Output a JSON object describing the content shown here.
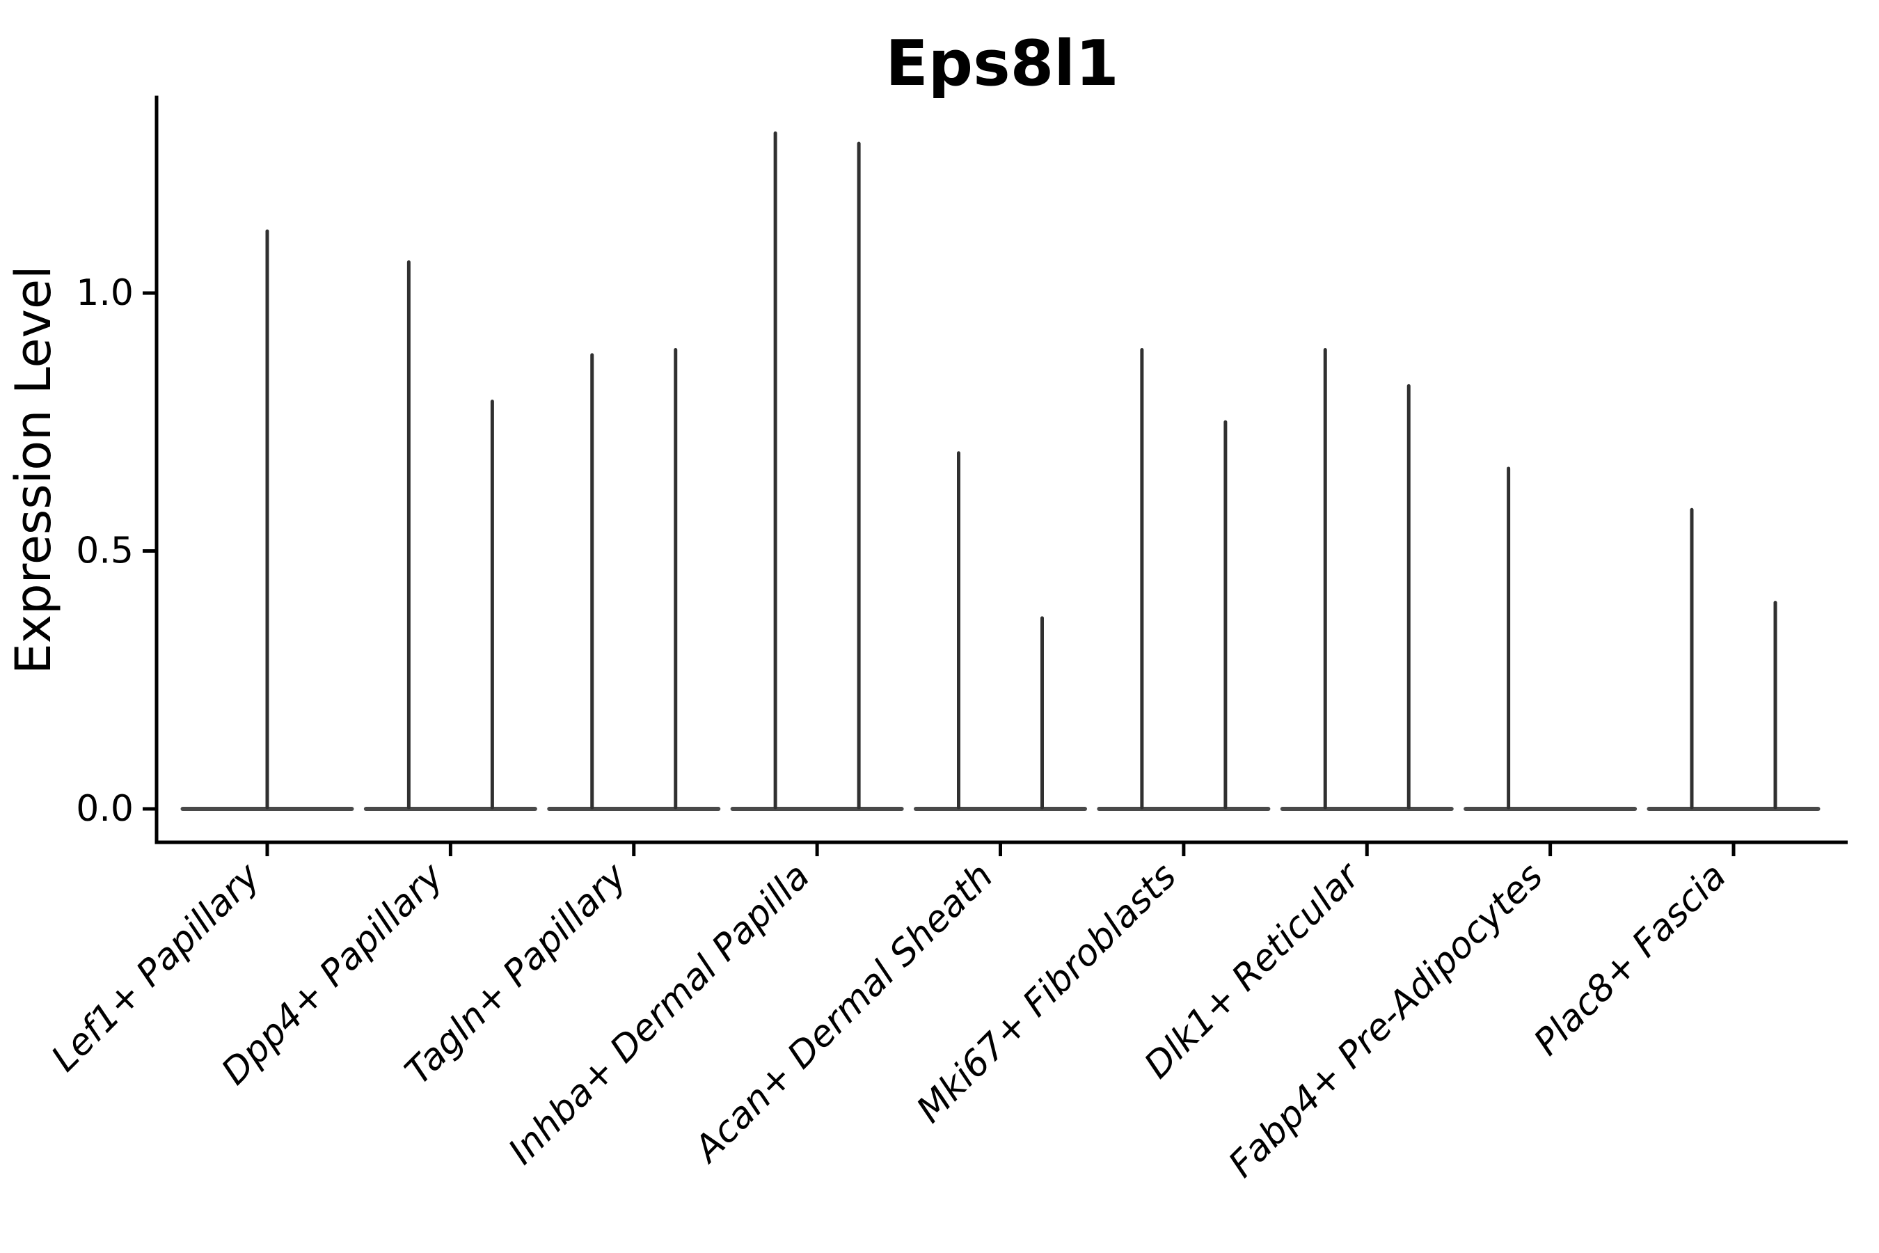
{
  "title": "Eps8l1",
  "axes": {
    "y_label": "Expression Level",
    "y_tick_labels": [
      "1.0",
      "0.5",
      "0.0"
    ],
    "x_tick_labels": [
      "Lef1+ Papillary",
      "Dpp4+ Papillary",
      "Tagln+ Papillary",
      "Inhba+ Dermal Papilla",
      "Acan+ Dermal Sheath",
      "Mki67+ Fibroblasts",
      "Dlk1+ Reticular",
      "Fabp4+ Pre-Adipocytes",
      "Plac8+ Fascia"
    ]
  },
  "colors": {
    "violin_stroke": "#303030",
    "baseline_stroke": "#3a3a3a",
    "axis": "#000000",
    "text": "#000000",
    "background": "#ffffff"
  },
  "chart_data": {
    "type": "violin",
    "title": "Eps8l1",
    "xlabel": "",
    "ylabel": "Expression Level",
    "ylim": [
      -0.07,
      1.38
    ],
    "y_ticks": [
      1.0,
      0.5,
      0.0
    ],
    "grid": false,
    "legend": null,
    "categories": [
      "Lef1+ Papillary",
      "Dpp4+ Papillary",
      "Tagln+ Papillary",
      "Inhba+ Dermal Papilla",
      "Acan+ Dermal Sheath",
      "Mki67+ Fibroblasts",
      "Dlk1+ Reticular",
      "Fabp4+ Pre-Adipocytes",
      "Plac8+ Fascia"
    ],
    "groups": [
      {
        "label": "Lef1+ Papillary",
        "violins": [
          {
            "pos": "center",
            "peak": 1.12
          }
        ]
      },
      {
        "label": "Dpp4+ Papillary",
        "violins": [
          {
            "pos": "left",
            "peak": 1.06
          },
          {
            "pos": "right",
            "peak": 0.79
          }
        ]
      },
      {
        "label": "Tagln+ Papillary",
        "violins": [
          {
            "pos": "left",
            "peak": 0.88
          },
          {
            "pos": "right",
            "peak": 0.89
          }
        ]
      },
      {
        "label": "Inhba+ Dermal Papilla",
        "violins": [
          {
            "pos": "left",
            "peak": 1.31
          },
          {
            "pos": "right",
            "peak": 1.29
          }
        ]
      },
      {
        "label": "Acan+ Dermal Sheath",
        "violins": [
          {
            "pos": "left",
            "peak": 0.69
          },
          {
            "pos": "right",
            "peak": 0.37
          }
        ]
      },
      {
        "label": "Mki67+ Fibroblasts",
        "violins": [
          {
            "pos": "left",
            "peak": 0.89
          },
          {
            "pos": "right",
            "peak": 0.75
          }
        ]
      },
      {
        "label": "Dlk1+ Reticular",
        "violins": [
          {
            "pos": "left",
            "peak": 0.89
          },
          {
            "pos": "right",
            "peak": 0.82
          }
        ]
      },
      {
        "label": "Fabp4+ Pre-Adipocytes",
        "violins": [
          {
            "pos": "left",
            "peak": 0.66
          },
          {
            "pos": "right",
            "peak": 0.0
          }
        ]
      },
      {
        "label": "Plac8+ Fascia",
        "violins": [
          {
            "pos": "left",
            "peak": 0.58
          },
          {
            "pos": "right",
            "peak": 0.4
          }
        ]
      }
    ],
    "description": "Violin plot of Eps8l1 expression per fibroblast subtype; each violin collapses to a thin vertical spike above a flat baseline at 0, indicating expression concentrated at zero with sparse higher-expressing cells."
  }
}
